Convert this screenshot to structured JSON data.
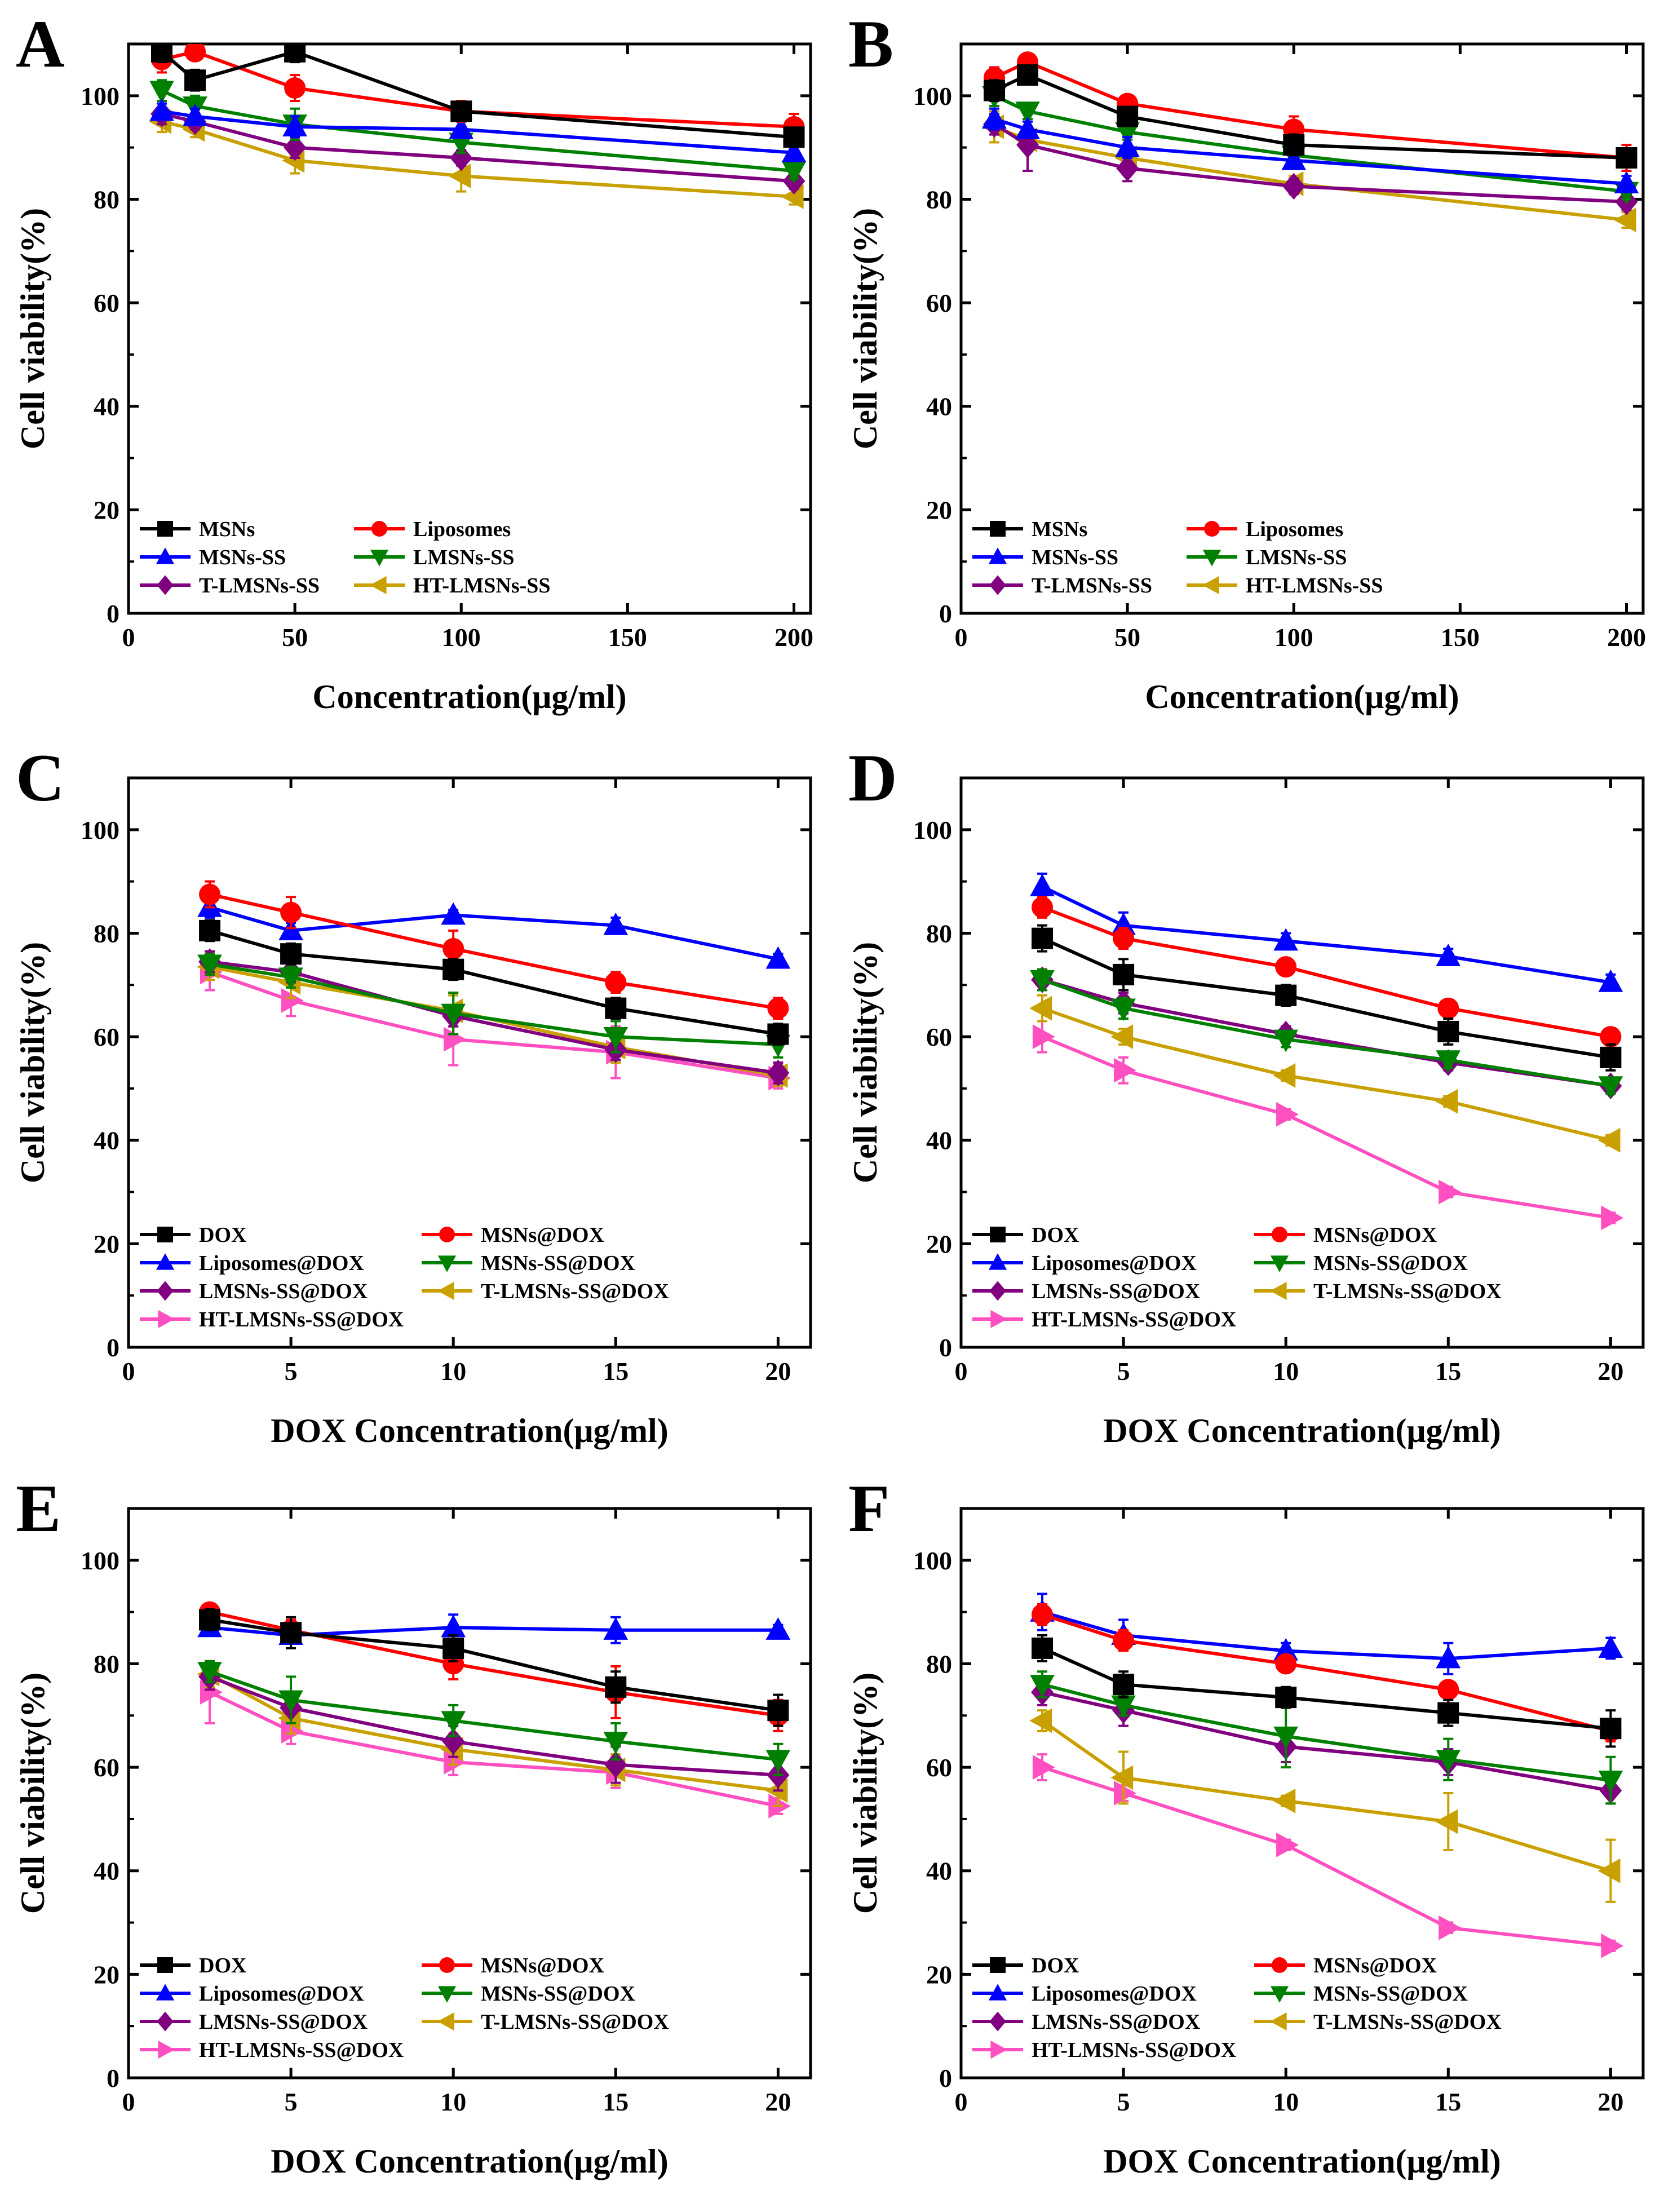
{
  "figure": {
    "styles": {
      "MSNs": {
        "color": "#000000",
        "marker": "square"
      },
      "Liposomes": {
        "color": "#ff0000",
        "marker": "circle"
      },
      "MSNs-SS": {
        "color": "#0000ff",
        "marker": "triangle-up"
      },
      "LMSNs-SS": {
        "color": "#008000",
        "marker": "triangle-down"
      },
      "T-LMSNs-SS": {
        "color": "#800080",
        "marker": "diamond"
      },
      "HT-LMSNs-SS": {
        "color": "#c8a000",
        "marker": "triangle-left"
      },
      "DOX": {
        "color": "#000000",
        "marker": "square"
      },
      "MSNs@DOX": {
        "color": "#ff0000",
        "marker": "circle"
      },
      "Liposomes@DOX": {
        "color": "#0000ff",
        "marker": "triangle-up"
      },
      "MSNs-SS@DOX": {
        "color": "#008000",
        "marker": "triangle-down"
      },
      "LMSNs-SS@DOX": {
        "color": "#800080",
        "marker": "diamond"
      },
      "T-LMSNs-SS@DOX": {
        "color": "#c8a000",
        "marker": "triangle-left"
      },
      "HT-LMSNs-SS@DOX": {
        "color": "#ff4fc0",
        "marker": "triangle-right"
      }
    }
  },
  "chart_data": [
    {
      "panel": "A",
      "type": "line",
      "xlabel": "Concentration(μg/ml)",
      "ylabel": "Cell viability(%)",
      "xlim": [
        0,
        205
      ],
      "ylim": [
        0,
        110
      ],
      "xticks": [
        0,
        50,
        100,
        150,
        200
      ],
      "yticks": [
        0,
        20,
        40,
        60,
        80,
        100
      ],
      "x": [
        10,
        20,
        50,
        100,
        200
      ],
      "series": [
        {
          "name": "MSNs",
          "values": [
            108.5,
            103,
            108.5,
            97,
            92
          ],
          "err": [
            2,
            2,
            2,
            1.5,
            1.5
          ]
        },
        {
          "name": "Liposomes",
          "values": [
            107,
            108.5,
            101.5,
            97,
            94
          ],
          "err": [
            2.5,
            1.5,
            2.5,
            2,
            2.5
          ]
        },
        {
          "name": "MSNs-SS",
          "values": [
            97,
            96,
            94,
            93.5,
            89
          ],
          "err": [
            1.5,
            1.5,
            2,
            1.5,
            1.5
          ]
        },
        {
          "name": "LMSNs-SS",
          "values": [
            101,
            98,
            94.5,
            91,
            85.5
          ],
          "err": [
            2,
            2,
            3,
            2,
            1.5
          ]
        },
        {
          "name": "T-LMSNs-SS",
          "values": [
            96.5,
            95,
            90,
            88,
            83.5
          ],
          "err": [
            2,
            1.5,
            2,
            1.5,
            1.5
          ]
        },
        {
          "name": "HT-LMSNs-SS",
          "values": [
            95,
            93.5,
            87.5,
            84.5,
            80.5
          ],
          "err": [
            2,
            1.5,
            2.5,
            3,
            1.5
          ]
        }
      ]
    },
    {
      "panel": "B",
      "type": "line",
      "xlabel": "Concentration(μg/ml)",
      "ylabel": "Cell viability(%)",
      "xlim": [
        0,
        205
      ],
      "ylim": [
        0,
        110
      ],
      "xticks": [
        0,
        50,
        100,
        150,
        200
      ],
      "yticks": [
        0,
        20,
        40,
        60,
        80,
        100
      ],
      "x": [
        10,
        20,
        50,
        100,
        200
      ],
      "series": [
        {
          "name": "MSNs",
          "values": [
            101,
            104,
            96,
            90.5,
            88
          ],
          "err": [
            2,
            1.5,
            1.5,
            2,
            1.5
          ]
        },
        {
          "name": "Liposomes",
          "values": [
            103.5,
            106.5,
            98.5,
            93.5,
            88
          ],
          "err": [
            2,
            1.5,
            1.5,
            2.5,
            2.5
          ]
        },
        {
          "name": "MSNs-SS",
          "values": [
            95.5,
            93.5,
            90,
            87.5,
            83
          ],
          "err": [
            2,
            1.5,
            2,
            1.5,
            1.5
          ]
        },
        {
          "name": "LMSNs-SS",
          "values": [
            100,
            97,
            93,
            88.5,
            81.5
          ],
          "err": [
            2,
            1.5,
            1.5,
            2,
            1.5
          ]
        },
        {
          "name": "T-LMSNs-SS",
          "values": [
            94.5,
            90.5,
            86,
            82.5,
            79.5
          ],
          "err": [
            2,
            5,
            2.5,
            1.5,
            1.5
          ]
        },
        {
          "name": "HT-LMSNs-SS",
          "values": [
            94,
            91.5,
            88,
            83,
            76
          ],
          "err": [
            3,
            2,
            2,
            1.5,
            1.5
          ]
        }
      ]
    },
    {
      "panel": "C",
      "type": "line",
      "xlabel": "DOX Concentration(μg/ml)",
      "ylabel": "Cell viability(%)",
      "xlim": [
        0,
        21
      ],
      "ylim": [
        0,
        110
      ],
      "xticks": [
        0,
        5,
        10,
        15,
        20
      ],
      "yticks": [
        0,
        20,
        40,
        60,
        80,
        100
      ],
      "x": [
        2.5,
        5,
        10,
        15,
        20
      ],
      "series": [
        {
          "name": "DOX",
          "values": [
            80.5,
            76,
            73,
            65.5,
            60.5
          ],
          "err": [
            2,
            2,
            2,
            2,
            2
          ]
        },
        {
          "name": "MSNs@DOX",
          "values": [
            87.5,
            84,
            77,
            70.5,
            65.5
          ],
          "err": [
            2.5,
            3,
            3.5,
            2,
            2
          ]
        },
        {
          "name": "Liposomes@DOX",
          "values": [
            85,
            80.5,
            83.5,
            81.5,
            75
          ],
          "err": [
            2,
            1.5,
            1,
            1.5,
            1
          ]
        },
        {
          "name": "MSNs-SS@DOX",
          "values": [
            74,
            71.5,
            64.5,
            60,
            58.5
          ],
          "err": [
            2,
            2,
            4,
            3,
            2.5
          ]
        },
        {
          "name": "LMSNs-SS@DOX",
          "values": [
            74.5,
            72.5,
            64,
            57.5,
            53
          ],
          "err": [
            2,
            2,
            2,
            2,
            2
          ]
        },
        {
          "name": "T-LMSNs-SS@DOX",
          "values": [
            73.5,
            70.5,
            65,
            58,
            52.5
          ],
          "err": [
            2.5,
            3,
            3,
            3,
            2
          ]
        },
        {
          "name": "HT-LMSNs-SS@DOX",
          "values": [
            72.5,
            67,
            59.5,
            57,
            52
          ],
          "err": [
            3.5,
            3,
            5,
            5,
            2
          ]
        }
      ]
    },
    {
      "panel": "D",
      "type": "line",
      "xlabel": "DOX Concentration(μg/ml)",
      "ylabel": "Cell viability(%)",
      "xlim": [
        0,
        21
      ],
      "ylim": [
        0,
        110
      ],
      "xticks": [
        0,
        5,
        10,
        15,
        20
      ],
      "yticks": [
        0,
        20,
        40,
        60,
        80,
        100
      ],
      "x": [
        2.5,
        5,
        10,
        15,
        20
      ],
      "series": [
        {
          "name": "DOX",
          "values": [
            79,
            72,
            68,
            61,
            56
          ],
          "err": [
            2.5,
            3,
            2,
            2.5,
            2.5
          ]
        },
        {
          "name": "MSNs@DOX",
          "values": [
            85,
            79,
            73.5,
            65.5,
            60
          ],
          "err": [
            2,
            2,
            1.5,
            1.5,
            1.5
          ]
        },
        {
          "name": "Liposomes@DOX",
          "values": [
            89,
            81.5,
            78.5,
            75.5,
            70.5
          ],
          "err": [
            2.5,
            2.5,
            1.5,
            1.5,
            1.5
          ]
        },
        {
          "name": "MSNs-SS@DOX",
          "values": [
            71,
            65.5,
            59.5,
            55.5,
            50.5
          ],
          "err": [
            2,
            2,
            1.5,
            1.5,
            1.5
          ]
        },
        {
          "name": "LMSNs-SS@DOX",
          "values": [
            71,
            66.5,
            60.5,
            55,
            50.5
          ],
          "err": [
            2,
            2,
            1.5,
            1.5,
            1.5
          ]
        },
        {
          "name": "T-LMSNs-SS@DOX",
          "values": [
            65.5,
            60,
            52.5,
            47.5,
            40
          ],
          "err": [
            2.5,
            1.5,
            1,
            1,
            1
          ]
        },
        {
          "name": "HT-LMSNs-SS@DOX",
          "values": [
            60,
            53.5,
            45,
            30,
            25
          ],
          "err": [
            3,
            2.5,
            1,
            1,
            1
          ]
        }
      ]
    },
    {
      "panel": "E",
      "type": "line",
      "xlabel": "DOX Concentration(μg/ml)",
      "ylabel": "Cell viability(%)",
      "xlim": [
        0,
        21
      ],
      "ylim": [
        0,
        110
      ],
      "xticks": [
        0,
        5,
        10,
        15,
        20
      ],
      "yticks": [
        0,
        20,
        40,
        60,
        80,
        100
      ],
      "x": [
        2.5,
        5,
        10,
        15,
        20
      ],
      "series": [
        {
          "name": "DOX",
          "values": [
            88.5,
            86,
            83,
            75.5,
            71
          ],
          "err": [
            2,
            3,
            2.5,
            3,
            3
          ]
        },
        {
          "name": "MSNs@DOX",
          "values": [
            90,
            86.5,
            80,
            74.5,
            70
          ],
          "err": [
            1.5,
            2,
            3,
            5,
            3
          ]
        },
        {
          "name": "Liposomes@DOX",
          "values": [
            87,
            85.5,
            87,
            86.5,
            86.5
          ],
          "err": [
            1.5,
            1.5,
            2.5,
            2.5,
            1
          ]
        },
        {
          "name": "MSNs-SS@DOX",
          "values": [
            78.5,
            73,
            69,
            65,
            61.5
          ],
          "err": [
            2,
            4.5,
            3,
            3.5,
            3
          ]
        },
        {
          "name": "LMSNs-SS@DOX",
          "values": [
            77.5,
            71.5,
            65,
            60.5,
            58.5
          ],
          "err": [
            2.5,
            3,
            3,
            3.5,
            3
          ]
        },
        {
          "name": "T-LMSNs-SS@DOX",
          "values": [
            78,
            69.5,
            63.5,
            59.5,
            55.5
          ],
          "err": [
            2.5,
            3,
            3,
            3,
            3
          ]
        },
        {
          "name": "HT-LMSNs-SS@DOX",
          "values": [
            74.5,
            67,
            61,
            59,
            52.5
          ],
          "err": [
            6,
            2.5,
            2.5,
            3,
            1.5
          ]
        }
      ]
    },
    {
      "panel": "F",
      "type": "line",
      "xlabel": "DOX Concentration(μg/ml)",
      "ylabel": "Cell viability(%)",
      "xlim": [
        0,
        21
      ],
      "ylim": [
        0,
        110
      ],
      "xticks": [
        0,
        5,
        10,
        15,
        20
      ],
      "yticks": [
        0,
        20,
        40,
        60,
        80,
        100
      ],
      "x": [
        2.5,
        5,
        10,
        15,
        20
      ],
      "series": [
        {
          "name": "DOX",
          "values": [
            83,
            76,
            73.5,
            70.5,
            67.5
          ],
          "err": [
            2.5,
            2.5,
            2,
            2.5,
            3.5
          ]
        },
        {
          "name": "MSNs@DOX",
          "values": [
            89.5,
            84.5,
            80,
            75,
            67
          ],
          "err": [
            2,
            2,
            1.5,
            1.5,
            2
          ]
        },
        {
          "name": "Liposomes@DOX",
          "values": [
            90,
            85.5,
            82.5,
            81,
            83
          ],
          "err": [
            3.5,
            3,
            1.5,
            3,
            2
          ]
        },
        {
          "name": "MSNs-SS@DOX",
          "values": [
            76,
            72,
            66,
            61.5,
            57.5
          ],
          "err": [
            2.5,
            2,
            6,
            4,
            4.5
          ]
        },
        {
          "name": "LMSNs-SS@DOX",
          "values": [
            74.5,
            71,
            64,
            61,
            55.5
          ],
          "err": [
            2.5,
            3,
            3,
            2.5,
            2.5
          ]
        },
        {
          "name": "T-LMSNs-SS@DOX",
          "values": [
            69,
            58,
            53.5,
            49.5,
            40
          ],
          "err": [
            2,
            5,
            1,
            5.5,
            6
          ]
        },
        {
          "name": "HT-LMSNs-SS@DOX",
          "values": [
            60,
            55,
            45,
            29,
            25.5
          ],
          "err": [
            2.5,
            1.5,
            1,
            1,
            1
          ]
        }
      ]
    }
  ]
}
